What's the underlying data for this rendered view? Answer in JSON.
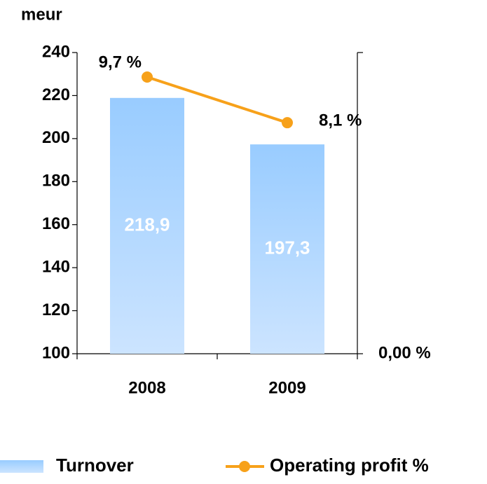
{
  "chart_data": {
    "type": "combo",
    "y_label": "meur",
    "categories": [
      "2008",
      "2009"
    ],
    "series": [
      {
        "name": "Turnover",
        "type": "bar",
        "color": "#99ccff",
        "values": [
          218.9,
          197.3
        ],
        "value_labels": [
          "218,9",
          "197,3"
        ]
      },
      {
        "name": "Operating profit %",
        "type": "line",
        "axis": "y2",
        "color": "#f7a11a",
        "values": [
          9.7,
          8.1
        ],
        "value_labels": [
          "9,7 %",
          "8,1 %"
        ]
      }
    ],
    "ylim": [
      100,
      240
    ],
    "yticks": [
      100,
      120,
      140,
      160,
      180,
      200,
      220,
      240
    ],
    "y2lim": [
      0,
      10.56
    ],
    "y2ticks": [
      {
        "value": 0,
        "label": "0,00 %"
      }
    ],
    "legend": "bottom"
  }
}
